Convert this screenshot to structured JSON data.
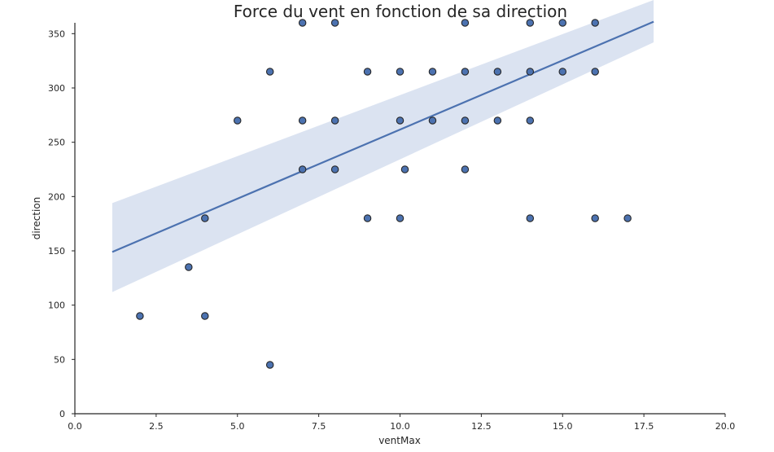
{
  "chart_data": {
    "type": "scatter",
    "title": "Force du vent en fonction de sa direction",
    "xlabel": "ventMax",
    "ylabel": "direction",
    "xlim": [
      0,
      20
    ],
    "ylim": [
      0,
      360
    ],
    "x_ticks": [
      "0.0",
      "2.5",
      "5.0",
      "7.5",
      "10.0",
      "12.5",
      "15.0",
      "17.5",
      "20.0"
    ],
    "y_ticks": [
      "0",
      "50",
      "100",
      "150",
      "200",
      "250",
      "300",
      "350"
    ],
    "grid": false,
    "points": [
      {
        "x": 2,
        "y": 90
      },
      {
        "x": 3.5,
        "y": 135
      },
      {
        "x": 4,
        "y": 90
      },
      {
        "x": 4,
        "y": 180
      },
      {
        "x": 5,
        "y": 270
      },
      {
        "x": 6,
        "y": 45
      },
      {
        "x": 6,
        "y": 315
      },
      {
        "x": 7,
        "y": 225
      },
      {
        "x": 7,
        "y": 270
      },
      {
        "x": 7,
        "y": 360
      },
      {
        "x": 8,
        "y": 225
      },
      {
        "x": 8,
        "y": 270
      },
      {
        "x": 8,
        "y": 360
      },
      {
        "x": 9,
        "y": 180
      },
      {
        "x": 9,
        "y": 315
      },
      {
        "x": 10,
        "y": 180
      },
      {
        "x": 10,
        "y": 270
      },
      {
        "x": 10,
        "y": 315
      },
      {
        "x": 10.15,
        "y": 225
      },
      {
        "x": 11,
        "y": 270
      },
      {
        "x": 11,
        "y": 315
      },
      {
        "x": 12,
        "y": 225
      },
      {
        "x": 12,
        "y": 270
      },
      {
        "x": 12,
        "y": 315
      },
      {
        "x": 12,
        "y": 360
      },
      {
        "x": 13,
        "y": 270
      },
      {
        "x": 13,
        "y": 315
      },
      {
        "x": 14,
        "y": 180
      },
      {
        "x": 14,
        "y": 270
      },
      {
        "x": 14,
        "y": 315
      },
      {
        "x": 14,
        "y": 360
      },
      {
        "x": 15,
        "y": 315
      },
      {
        "x": 15,
        "y": 360
      },
      {
        "x": 16,
        "y": 180
      },
      {
        "x": 16,
        "y": 315
      },
      {
        "x": 16,
        "y": 360
      },
      {
        "x": 17,
        "y": 180
      }
    ],
    "regression_line": {
      "x": [
        1.15,
        17.8
      ],
      "y": [
        149,
        361
      ]
    },
    "confidence_band": {
      "x": [
        1.15,
        17.8
      ],
      "upper": [
        194,
        381
      ],
      "lower": [
        112,
        342
      ]
    },
    "colors": {
      "marker_fill": "#4c72b0",
      "marker_edge": "#262626",
      "line": "#4c72b0",
      "band": "#dbe3f1",
      "axis": "#262626"
    }
  }
}
